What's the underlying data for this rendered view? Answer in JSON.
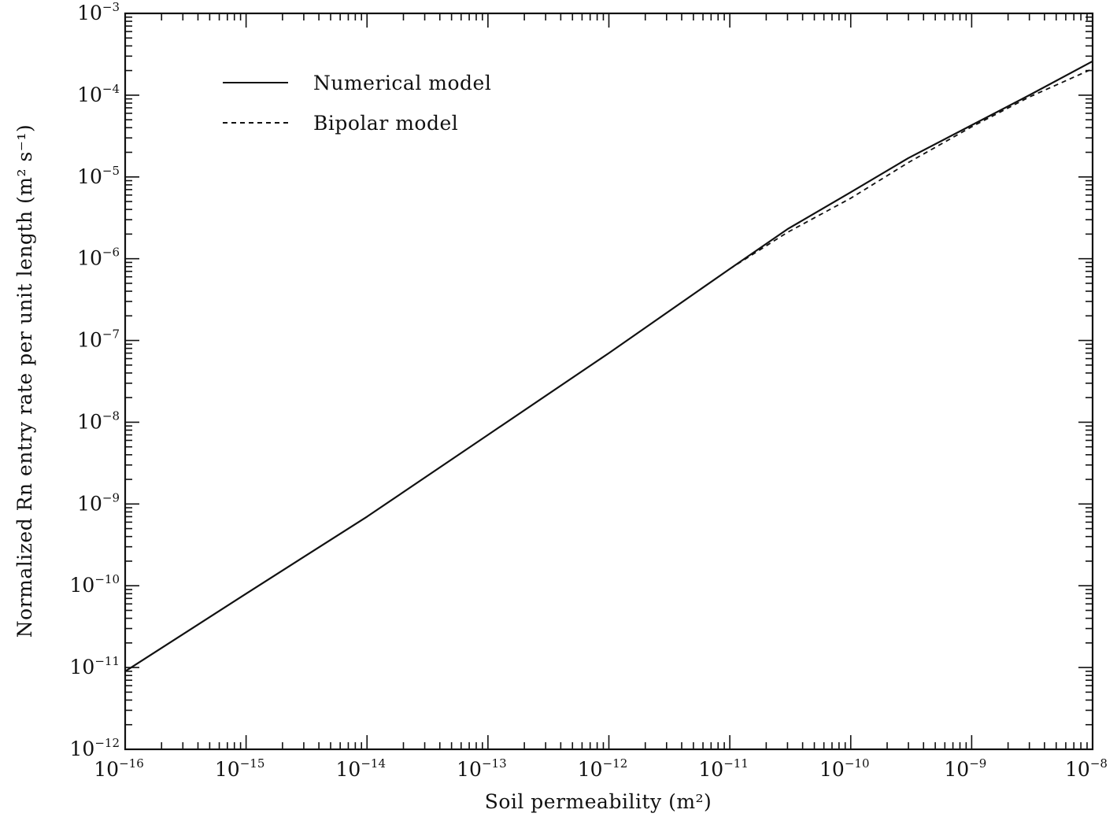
{
  "chart_data": {
    "type": "line",
    "title": "",
    "xlabel": "Soil permeability (m²)",
    "ylabel": "Normalized Rn entry rate per unit length (m² s⁻¹)",
    "xscale": "log",
    "yscale": "log",
    "xlim": [
      1e-16,
      1e-08
    ],
    "ylim": [
      1e-12,
      0.001
    ],
    "grid": false,
    "legend_position": "top-left",
    "x_tick_labels": [
      "10-16",
      "10-15",
      "10-14",
      "10-13",
      "10-12",
      "10-11",
      "10-10",
      "10-9",
      "10-8"
    ],
    "y_tick_labels": [
      "10-12",
      "10-11",
      "10-10",
      "10-9",
      "10-8",
      "10-7",
      "10-6",
      "10-5",
      "10-4",
      "10-3"
    ],
    "series": [
      {
        "name": "Numerical model",
        "line_style": "solid",
        "color": "#111111",
        "x": [
          1e-16,
          1e-15,
          1e-14,
          1e-13,
          1e-12,
          1e-11,
          3e-11,
          1e-10,
          3e-10,
          1e-09,
          3e-09,
          1e-08
        ],
        "y": [
          9e-12,
          8e-11,
          7e-10,
          7e-09,
          7e-08,
          7.5e-07,
          2.3e-06,
          6.5e-06,
          1.7e-05,
          4.3e-05,
          0.0001,
          0.00026
        ]
      },
      {
        "name": "Bipolar model",
        "line_style": "dashed",
        "color": "#111111",
        "x": [
          1e-11,
          3e-11,
          1e-10,
          3e-10,
          1e-09,
          3e-09,
          1e-08
        ],
        "y": [
          7.5e-07,
          2.1e-06,
          5.5e-06,
          1.5e-05,
          4.1e-05,
          9.5e-05,
          0.00021
        ]
      }
    ]
  }
}
